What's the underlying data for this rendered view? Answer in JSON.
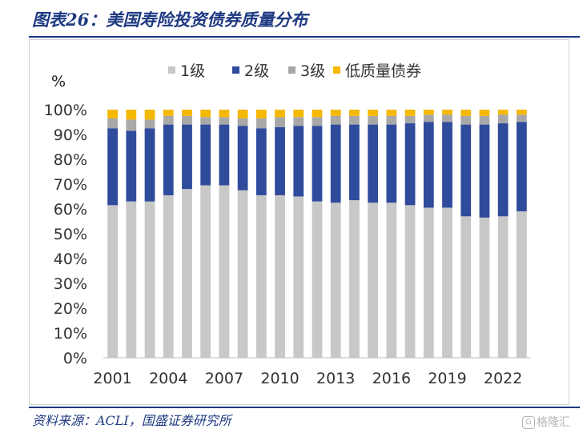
{
  "title": "图表26：美国寿险投资债券质量分布",
  "source": "资料来源：ACLI，国盛证券研究所",
  "watermark": {
    "icon": "G",
    "text": "格隆汇"
  },
  "chart_data": {
    "type": "bar",
    "stacked": true,
    "ylabel": "%",
    "ylim": [
      0,
      100
    ],
    "yticks": [
      "0%",
      "10%",
      "20%",
      "30%",
      "40%",
      "50%",
      "60%",
      "70%",
      "80%",
      "90%",
      "100%"
    ],
    "xtick_labels": [
      "2001",
      "2004",
      "2007",
      "2010",
      "2013",
      "2016",
      "2019",
      "2022"
    ],
    "categories": [
      "2001",
      "2002",
      "2003",
      "2004",
      "2005",
      "2006",
      "2007",
      "2008",
      "2009",
      "2010",
      "2011",
      "2012",
      "2013",
      "2014",
      "2015",
      "2016",
      "2017",
      "2018",
      "2019",
      "2020",
      "2021",
      "2022",
      "2023"
    ],
    "legend_position": "top",
    "grid": false,
    "series": [
      {
        "name": "1级",
        "color": "#c8c8c8",
        "values": [
          61.5,
          63.0,
          63.0,
          65.5,
          68.0,
          69.5,
          69.5,
          67.5,
          65.5,
          65.5,
          65.0,
          63.0,
          62.5,
          63.5,
          62.5,
          62.5,
          61.5,
          60.5,
          60.5,
          57.0,
          56.5,
          57.0,
          59.0
        ]
      },
      {
        "name": "2级",
        "color": "#2f4b9c",
        "values": [
          31.0,
          28.5,
          29.5,
          28.5,
          26.0,
          24.5,
          24.5,
          26.0,
          27.0,
          27.5,
          28.5,
          30.5,
          31.5,
          30.5,
          31.5,
          31.5,
          33.0,
          34.5,
          34.5,
          37.0,
          37.5,
          37.5,
          36.0
        ]
      },
      {
        "name": "3级",
        "color": "#a8a8a8",
        "values": [
          4.0,
          4.5,
          3.5,
          3.5,
          3.5,
          3.0,
          3.0,
          3.0,
          4.0,
          4.0,
          3.5,
          3.5,
          3.5,
          3.5,
          3.5,
          3.5,
          3.0,
          3.0,
          3.0,
          3.5,
          3.5,
          3.5,
          3.0
        ]
      },
      {
        "name": "低质量债券",
        "color": "#f5b800",
        "values": [
          3.5,
          4.0,
          4.0,
          2.5,
          2.5,
          3.0,
          3.0,
          3.5,
          3.5,
          3.0,
          3.0,
          3.0,
          2.5,
          2.5,
          2.5,
          2.5,
          2.5,
          2.0,
          2.0,
          2.5,
          2.5,
          2.0,
          2.0
        ]
      }
    ]
  }
}
